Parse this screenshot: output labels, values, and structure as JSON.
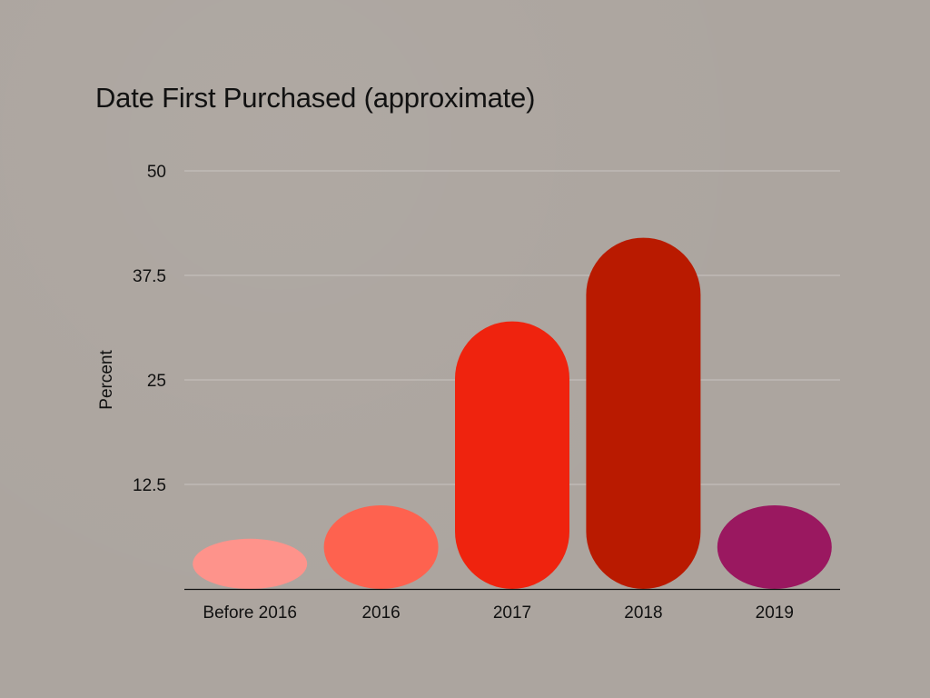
{
  "chart_data": {
    "type": "bar",
    "title": "Date First Purchased (approximate)",
    "xlabel": "",
    "ylabel": "Percent",
    "categories": [
      "Before 2016",
      "2016",
      "2017",
      "2018",
      "2019"
    ],
    "values": [
      6,
      10,
      32,
      42,
      10
    ],
    "colors": [
      "#fe938b",
      "#fe624f",
      "#ef230e",
      "#b91a00",
      "#9a1860"
    ],
    "ylim": [
      0,
      50
    ],
    "yticks": [
      12.5,
      25,
      37.5,
      50
    ],
    "ytick_labels": [
      "12.5",
      "25",
      "37.5",
      "50"
    ],
    "grid": true,
    "legend": "none"
  }
}
